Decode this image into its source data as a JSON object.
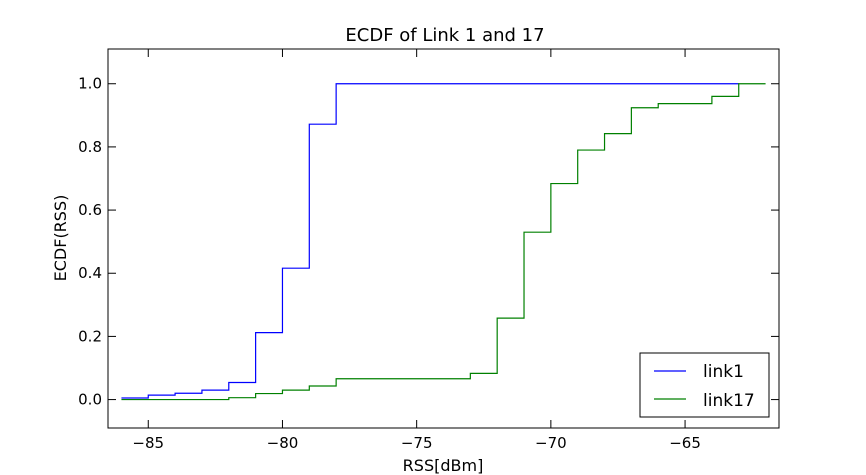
{
  "chart_data": {
    "type": "line",
    "step": "post",
    "title": "ECDF of Link 1 and 17",
    "xlabel": "RSS[dBm]",
    "ylabel": "ECDF(RSS)",
    "xlim": [
      -86.5,
      -61.5
    ],
    "ylim": [
      -0.09,
      1.11
    ],
    "xticks": [
      -85,
      -80,
      -75,
      -70,
      -65
    ],
    "xtick_labels": [
      "−85",
      "−80",
      "−75",
      "−70",
      "−65"
    ],
    "yticks": [
      0.0,
      0.2,
      0.4,
      0.6,
      0.8,
      1.0
    ],
    "ytick_labels": [
      "0.0",
      "0.2",
      "0.4",
      "0.6",
      "0.8",
      "1.0"
    ],
    "grid": false,
    "legend_position": "lower-right",
    "series": [
      {
        "name": "link1",
        "color": "#0000ff",
        "x": [
          -86,
          -85,
          -84,
          -83,
          -82,
          -81,
          -80,
          -79,
          -78,
          -63
        ],
        "y": [
          0.005,
          0.014,
          0.02,
          0.03,
          0.054,
          0.212,
          0.416,
          0.872,
          1.0,
          1.0
        ]
      },
      {
        "name": "link17",
        "color": "#008000",
        "x": [
          -86,
          -82,
          -81,
          -80,
          -79,
          -78,
          -73,
          -72,
          -71,
          -70,
          -69,
          -68,
          -67,
          -66,
          -64,
          -63,
          -62
        ],
        "y": [
          0.0,
          0.006,
          0.019,
          0.03,
          0.043,
          0.066,
          0.083,
          0.258,
          0.53,
          0.684,
          0.79,
          0.842,
          0.924,
          0.937,
          0.96,
          1.0,
          1.0
        ]
      }
    ]
  }
}
